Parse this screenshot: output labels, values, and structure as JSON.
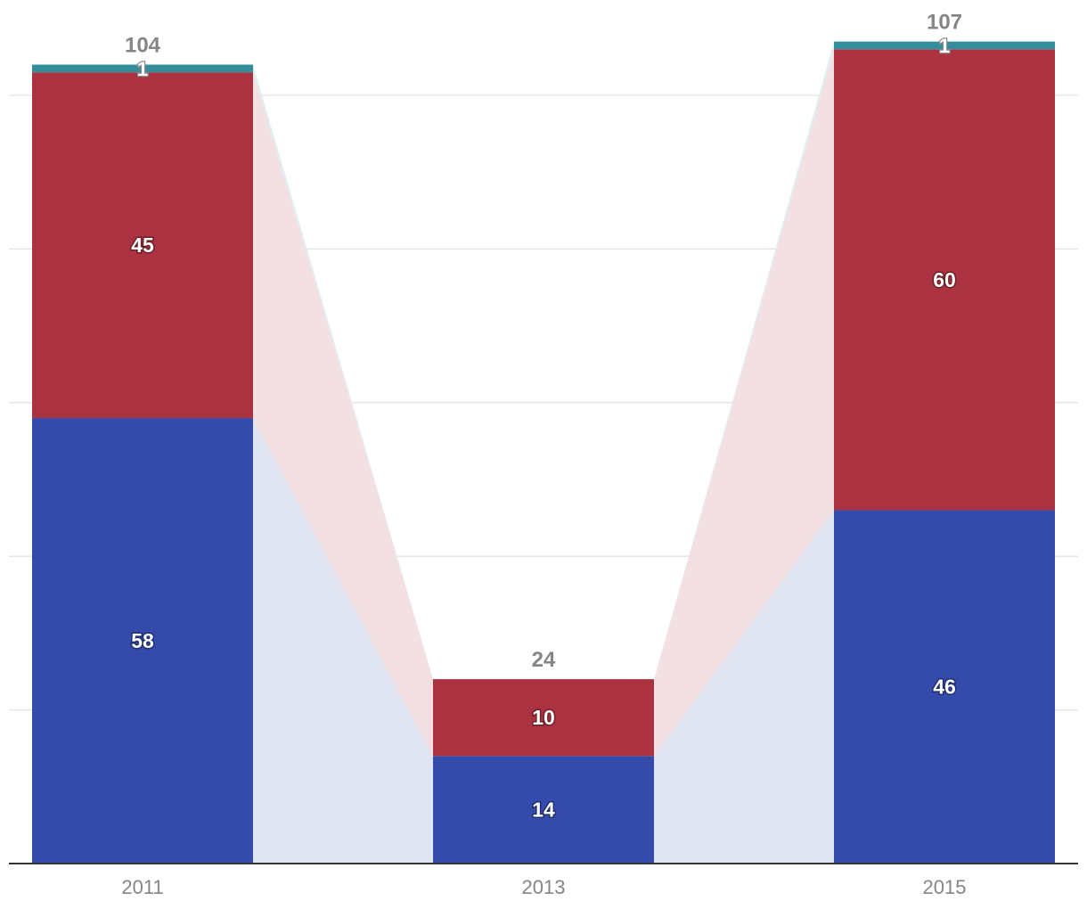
{
  "chart_data": {
    "type": "bar",
    "stacked": true,
    "categories": [
      "2011",
      "2013",
      "2015"
    ],
    "series": [
      {
        "name": "Blue",
        "color": "#344bab",
        "band_color": "#e1e4f1",
        "values": [
          58,
          14,
          46
        ]
      },
      {
        "name": "Red",
        "color": "#aa3241",
        "band_color": "#f3e0e2",
        "values": [
          45,
          10,
          60
        ]
      },
      {
        "name": "Teal",
        "color": "#338d9a",
        "band_color": "#e0eef0",
        "values": [
          1,
          0,
          1
        ]
      }
    ],
    "totals": [
      "104",
      "24",
      "107"
    ],
    "segment_labels": [
      [
        "58",
        "45",
        "1"
      ],
      [
        "14",
        "10",
        ""
      ],
      [
        "46",
        "60",
        "1"
      ]
    ],
    "ylim": [
      0,
      107
    ],
    "grid": true,
    "legend": "none",
    "title": "",
    "xlabel": "",
    "ylabel": ""
  }
}
